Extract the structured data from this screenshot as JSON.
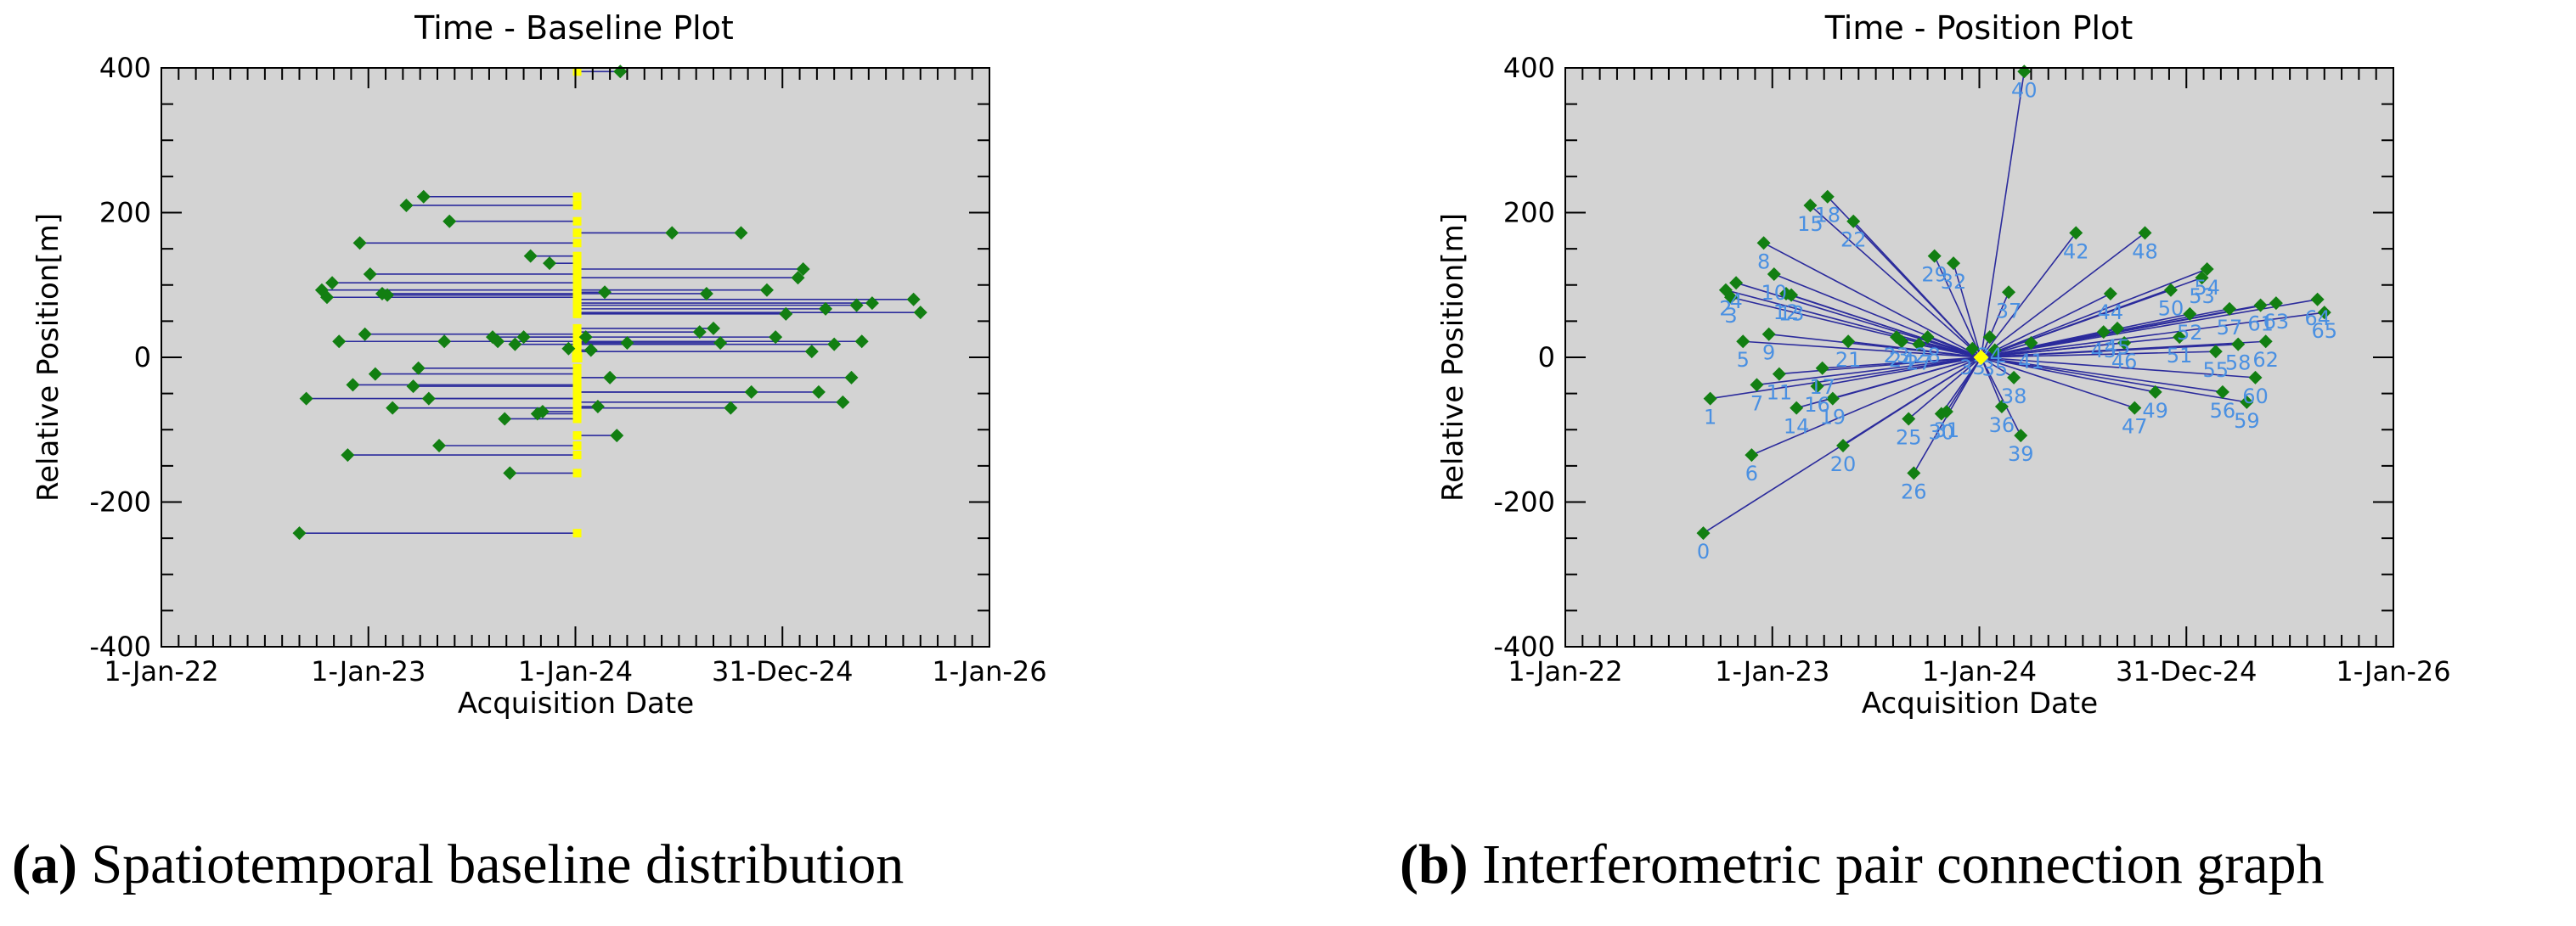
{
  "colors": {
    "plot_bg": "#d3d3d3",
    "point": "#127f12",
    "line": "#2b2b9c",
    "highlight": "#ffff00",
    "label": "#4a90e2",
    "axis": "#000000"
  },
  "chart_data": [
    {
      "id": "a",
      "type": "scatter",
      "title": "Time - Baseline Plot",
      "xlabel": "Acquisition Date",
      "ylabel": "Relative Position[m]",
      "xlim": [
        0,
        48
      ],
      "ylim": [
        -400,
        400
      ],
      "x_unit": "months since 1-Jan-22",
      "reference_x": 24.1,
      "xticks": [
        {
          "value": 0,
          "label": "1-Jan-22"
        },
        {
          "value": 12,
          "label": "1-Jan-23"
        },
        {
          "value": 24,
          "label": "1-Jan-24"
        },
        {
          "value": 36,
          "label": "31-Dec-24"
        },
        {
          "value": 48,
          "label": "1-Jan-26"
        }
      ],
      "yticks": [
        {
          "value": 400,
          "label": "400"
        },
        {
          "value": 200,
          "label": "200"
        },
        {
          "value": 0,
          "label": "0"
        },
        {
          "value": -200,
          "label": "-200"
        },
        {
          "value": -400,
          "label": "-400"
        }
      ],
      "caption_letter": "(a)",
      "caption_text": " Spatiotemporal baseline distribution"
    },
    {
      "id": "b",
      "type": "scatter",
      "title": "Time - Position Plot",
      "xlabel": "Acquisition Date",
      "ylabel": "Relative Position[m]",
      "xlim": [
        0,
        48
      ],
      "ylim": [
        -400,
        400
      ],
      "x_unit": "months since 1-Jan-22",
      "reference_x": 24.1,
      "xticks": [
        {
          "value": 0,
          "label": "1-Jan-22"
        },
        {
          "value": 12,
          "label": "1-Jan-23"
        },
        {
          "value": 24,
          "label": "1-Jan-24"
        },
        {
          "value": 36,
          "label": "31-Dec-24"
        },
        {
          "value": 48,
          "label": "1-Jan-26"
        }
      ],
      "yticks": [
        {
          "value": 400,
          "label": "400"
        },
        {
          "value": 200,
          "label": "200"
        },
        {
          "value": 0,
          "label": "0"
        },
        {
          "value": -200,
          "label": "-200"
        },
        {
          "value": -400,
          "label": "-400"
        }
      ],
      "caption_letter": "(b)",
      "caption_text": " Interferometric pair connection graph"
    }
  ],
  "points": [
    {
      "id": "0",
      "x": 8.0,
      "y": -243
    },
    {
      "id": "1",
      "x": 8.4,
      "y": -57
    },
    {
      "id": "2",
      "x": 9.3,
      "y": 93
    },
    {
      "id": "3",
      "x": 9.6,
      "y": 83
    },
    {
      "id": "4",
      "x": 9.9,
      "y": 103
    },
    {
      "id": "5",
      "x": 10.3,
      "y": 22
    },
    {
      "id": "6",
      "x": 10.8,
      "y": -135
    },
    {
      "id": "7",
      "x": 11.1,
      "y": -38
    },
    {
      "id": "8",
      "x": 11.5,
      "y": 158
    },
    {
      "id": "9",
      "x": 11.8,
      "y": 32
    },
    {
      "id": "10",
      "x": 12.1,
      "y": 115
    },
    {
      "id": "11",
      "x": 12.4,
      "y": -23
    },
    {
      "id": "12",
      "x": 12.8,
      "y": 88
    },
    {
      "id": "13",
      "x": 13.1,
      "y": 86
    },
    {
      "id": "14",
      "x": 13.4,
      "y": -70
    },
    {
      "id": "15",
      "x": 14.2,
      "y": 210
    },
    {
      "id": "16",
      "x": 14.6,
      "y": -40
    },
    {
      "id": "17",
      "x": 14.9,
      "y": -15
    },
    {
      "id": "18",
      "x": 15.2,
      "y": 222
    },
    {
      "id": "19",
      "x": 15.5,
      "y": -57
    },
    {
      "id": "20",
      "x": 16.1,
      "y": -122
    },
    {
      "id": "21",
      "x": 16.4,
      "y": 22
    },
    {
      "id": "22",
      "x": 16.7,
      "y": 188
    },
    {
      "id": "23",
      "x": 19.2,
      "y": 28
    },
    {
      "id": "24",
      "x": 19.5,
      "y": 22
    },
    {
      "id": "25",
      "x": 19.9,
      "y": -85
    },
    {
      "id": "26",
      "x": 20.2,
      "y": -160
    },
    {
      "id": "27",
      "x": 20.5,
      "y": 18
    },
    {
      "id": "28",
      "x": 21.0,
      "y": 28
    },
    {
      "id": "29",
      "x": 21.4,
      "y": 140
    },
    {
      "id": "30",
      "x": 21.8,
      "y": -78
    },
    {
      "id": "31",
      "x": 22.1,
      "y": -75
    },
    {
      "id": "32",
      "x": 22.5,
      "y": 130
    },
    {
      "id": "33",
      "x": 23.6,
      "y": 12
    },
    {
      "id": "34",
      "x": 24.6,
      "y": 28
    },
    {
      "id": "35",
      "x": 24.9,
      "y": 10
    },
    {
      "id": "36",
      "x": 25.3,
      "y": -68
    },
    {
      "id": "37",
      "x": 25.7,
      "y": 90
    },
    {
      "id": "38",
      "x": 26.0,
      "y": -28
    },
    {
      "id": "39",
      "x": 26.4,
      "y": -108
    },
    {
      "id": "40",
      "x": 26.6,
      "y": 395
    },
    {
      "id": "41",
      "x": 27.0,
      "y": 20
    },
    {
      "id": "42",
      "x": 29.6,
      "y": 172
    },
    {
      "id": "43",
      "x": 31.2,
      "y": 35
    },
    {
      "id": "44",
      "x": 31.6,
      "y": 88
    },
    {
      "id": "45",
      "x": 32.0,
      "y": 40
    },
    {
      "id": "46",
      "x": 32.4,
      "y": 20
    },
    {
      "id": "47",
      "x": 33.0,
      "y": -70
    },
    {
      "id": "48",
      "x": 33.6,
      "y": 172
    },
    {
      "id": "49",
      "x": 34.2,
      "y": -48
    },
    {
      "id": "50",
      "x": 35.1,
      "y": 93
    },
    {
      "id": "51",
      "x": 35.6,
      "y": 28
    },
    {
      "id": "52",
      "x": 36.2,
      "y": 60
    },
    {
      "id": "53",
      "x": 36.9,
      "y": 110
    },
    {
      "id": "54",
      "x": 37.2,
      "y": 122
    },
    {
      "id": "55",
      "x": 37.7,
      "y": 8
    },
    {
      "id": "56",
      "x": 38.1,
      "y": -48
    },
    {
      "id": "57",
      "x": 38.5,
      "y": 67
    },
    {
      "id": "58",
      "x": 39.0,
      "y": 18
    },
    {
      "id": "59",
      "x": 39.5,
      "y": -62
    },
    {
      "id": "60",
      "x": 40.0,
      "y": -28
    },
    {
      "id": "61",
      "x": 40.3,
      "y": 72
    },
    {
      "id": "62",
      "x": 40.6,
      "y": 22
    },
    {
      "id": "63",
      "x": 41.2,
      "y": 75
    },
    {
      "id": "64",
      "x": 43.6,
      "y": 80
    },
    {
      "id": "65",
      "x": 44.0,
      "y": 62
    }
  ]
}
